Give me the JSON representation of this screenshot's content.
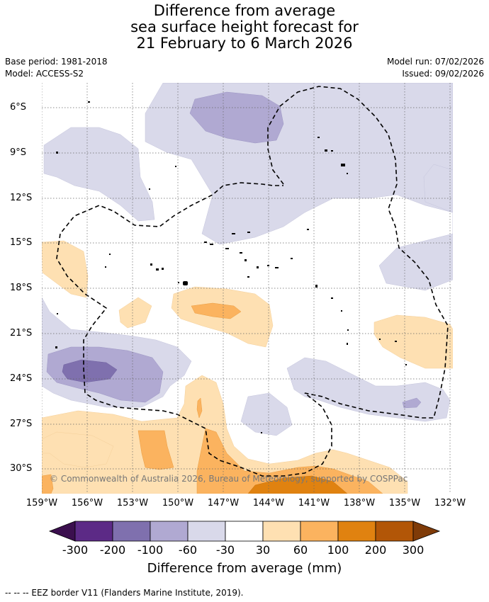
{
  "title": {
    "line1": "Difference from average",
    "line2": "sea surface height forecast for",
    "line3": "21 February to 6 March 2026"
  },
  "meta": {
    "base_period": "Base period: 1981-2018",
    "model": "Model: ACCESS-S2",
    "model_run": "Model run: 07/02/2026",
    "issued": "Issued: 09/02/2026"
  },
  "axes": {
    "lat_labels": [
      "6°S",
      "9°S",
      "12°S",
      "15°S",
      "18°S",
      "21°S",
      "24°S",
      "27°S",
      "30°S"
    ],
    "lon_labels": [
      "159°W",
      "156°W",
      "153°W",
      "150°W",
      "147°W",
      "144°W",
      "141°W",
      "138°W",
      "135°W",
      "132°W"
    ]
  },
  "copyright": "© Commonwealth of Australia 2026, Bureau of Meteorology, supported by COSPPac",
  "colorbar": {
    "ticks": [
      "-300",
      "-200",
      "-100",
      "-60",
      "-30",
      "30",
      "60",
      "100",
      "200",
      "300"
    ],
    "colors": [
      "#3b0f4e",
      "#5c2a86",
      "#7f70ae",
      "#b0a9d2",
      "#d9d9ea",
      "#ffffff",
      "#fee0b2",
      "#fbb35f",
      "#e08210",
      "#b25607",
      "#7f3b08"
    ],
    "title": "Difference from average (mm)"
  },
  "footer": "--  --  -- EEZ border V11 (Flanders Marine Institute, 2019).",
  "colors": {
    "neg_light": "#d9d9ea",
    "neg_mid": "#b0a9d2",
    "neg_dark": "#7f70ae",
    "pos_light": "#fee0b2",
    "pos_mid": "#fbb35f",
    "pos_dark": "#e08210",
    "grid": "#666666"
  }
}
